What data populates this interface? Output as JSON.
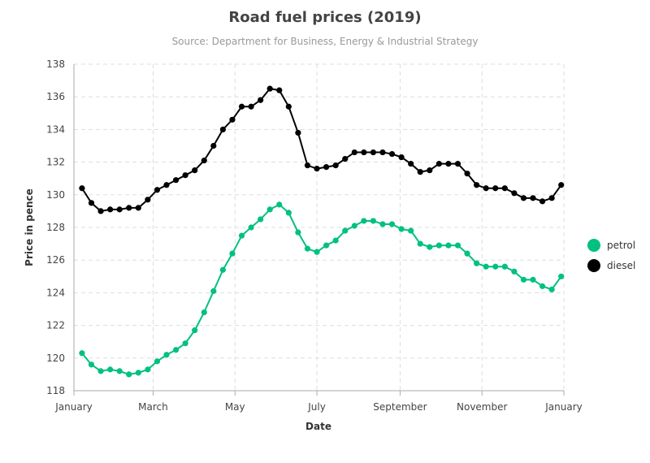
{
  "chart_data": {
    "type": "line",
    "title": "Road fuel prices (2019)",
    "subtitle": "Source: Department for Business, Energy & Industrial Strategy",
    "xlabel": "Date",
    "ylabel": "Price in pence",
    "x_axis": {
      "type": "date",
      "range": [
        "2019-01-01",
        "2020-01-01"
      ],
      "ticks": [
        {
          "label": "January",
          "date": "2019-01-01"
        },
        {
          "label": "March",
          "date": "2019-03-01"
        },
        {
          "label": "May",
          "date": "2019-05-01"
        },
        {
          "label": "July",
          "date": "2019-07-01"
        },
        {
          "label": "September",
          "date": "2019-09-01"
        },
        {
          "label": "November",
          "date": "2019-11-01"
        },
        {
          "label": "January",
          "date": "2020-01-01"
        }
      ]
    },
    "ylim": [
      118,
      138
    ],
    "yticks": [
      118,
      120,
      122,
      124,
      126,
      128,
      130,
      132,
      134,
      136,
      138
    ],
    "grid": true,
    "legend_position": "right",
    "x": [
      "2019-01-07",
      "2019-01-14",
      "2019-01-21",
      "2019-01-28",
      "2019-02-04",
      "2019-02-11",
      "2019-02-18",
      "2019-02-25",
      "2019-03-04",
      "2019-03-11",
      "2019-03-18",
      "2019-03-25",
      "2019-04-01",
      "2019-04-08",
      "2019-04-15",
      "2019-04-22",
      "2019-04-29",
      "2019-05-06",
      "2019-05-13",
      "2019-05-20",
      "2019-05-27",
      "2019-06-03",
      "2019-06-10",
      "2019-06-17",
      "2019-06-24",
      "2019-07-01",
      "2019-07-08",
      "2019-07-15",
      "2019-07-22",
      "2019-07-29",
      "2019-08-05",
      "2019-08-12",
      "2019-08-19",
      "2019-08-26",
      "2019-09-02",
      "2019-09-09",
      "2019-09-16",
      "2019-09-23",
      "2019-09-30",
      "2019-10-07",
      "2019-10-14",
      "2019-10-21",
      "2019-10-28",
      "2019-11-04",
      "2019-11-11",
      "2019-11-18",
      "2019-11-25",
      "2019-12-02",
      "2019-12-09",
      "2019-12-16",
      "2019-12-23",
      "2019-12-30"
    ],
    "series": [
      {
        "name": "petrol",
        "color": "#00c082",
        "values": [
          120.3,
          119.6,
          119.2,
          119.3,
          119.2,
          119.0,
          119.1,
          119.3,
          119.8,
          120.2,
          120.5,
          120.9,
          121.7,
          122.8,
          124.1,
          125.4,
          126.4,
          127.5,
          128.0,
          128.5,
          129.1,
          129.4,
          128.9,
          127.7,
          126.7,
          126.5,
          126.9,
          127.2,
          127.8,
          128.1,
          128.4,
          128.4,
          128.2,
          128.2,
          127.9,
          127.8,
          127.0,
          126.8,
          126.9,
          126.9,
          126.9,
          126.4,
          125.8,
          125.6,
          125.6,
          125.6,
          125.3,
          124.8,
          124.8,
          124.4,
          124.2,
          125.0
        ]
      },
      {
        "name": "diesel",
        "color": "#000000",
        "values": [
          130.4,
          129.5,
          129.0,
          129.1,
          129.1,
          129.2,
          129.2,
          129.7,
          130.3,
          130.6,
          130.9,
          131.2,
          131.5,
          132.1,
          133.0,
          134.0,
          134.6,
          135.4,
          135.4,
          135.8,
          136.5,
          136.4,
          135.4,
          133.8,
          131.8,
          131.6,
          131.7,
          131.8,
          132.2,
          132.6,
          132.6,
          132.6,
          132.6,
          132.5,
          132.3,
          131.9,
          131.4,
          131.5,
          131.9,
          131.9,
          131.9,
          131.3,
          130.6,
          130.4,
          130.4,
          130.4,
          130.1,
          129.8,
          129.8,
          129.6,
          129.8,
          130.6
        ]
      }
    ]
  }
}
